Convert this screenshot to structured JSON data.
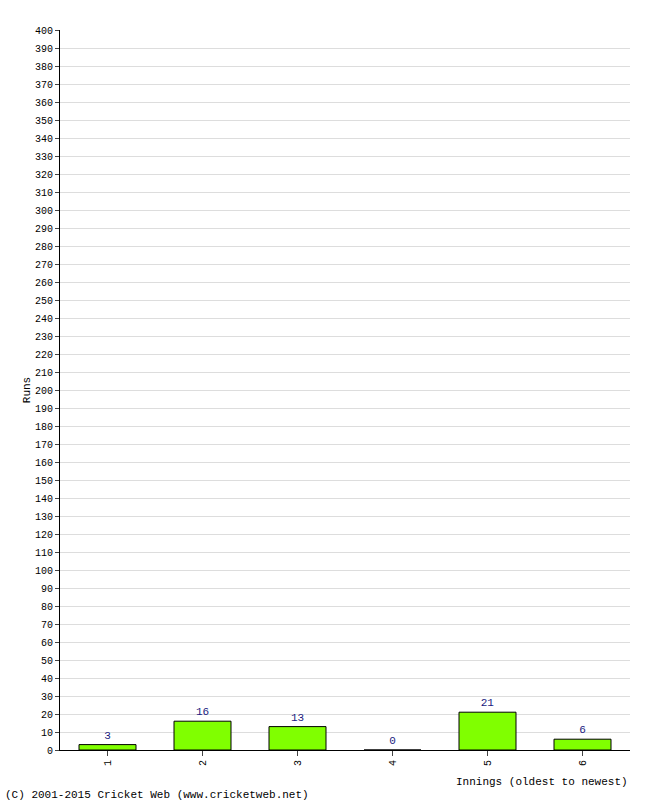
{
  "chart_data": {
    "type": "bar",
    "categories": [
      "1",
      "2",
      "3",
      "4",
      "5",
      "6"
    ],
    "values": [
      3,
      16,
      13,
      0,
      21,
      6
    ],
    "color": "#80ff00",
    "x_label": "Innings (oldest to newest)",
    "y_label": "Runs",
    "annotations": [
      "(C) 2001-2015 Cricket Web (www.cricketweb.net)"
    ],
    "ylim": [
      0,
      400
    ],
    "yticks": [
      0,
      10,
      20,
      30,
      40,
      50,
      60,
      70,
      80,
      90,
      100,
      110,
      120,
      130,
      140,
      150,
      160,
      170,
      180,
      190,
      200,
      210,
      220,
      230,
      240,
      250,
      260,
      270,
      280,
      290,
      300,
      310,
      320,
      330,
      340,
      350,
      360,
      370,
      380,
      390,
      400
    ],
    "grid": true,
    "data_labels": true
  }
}
